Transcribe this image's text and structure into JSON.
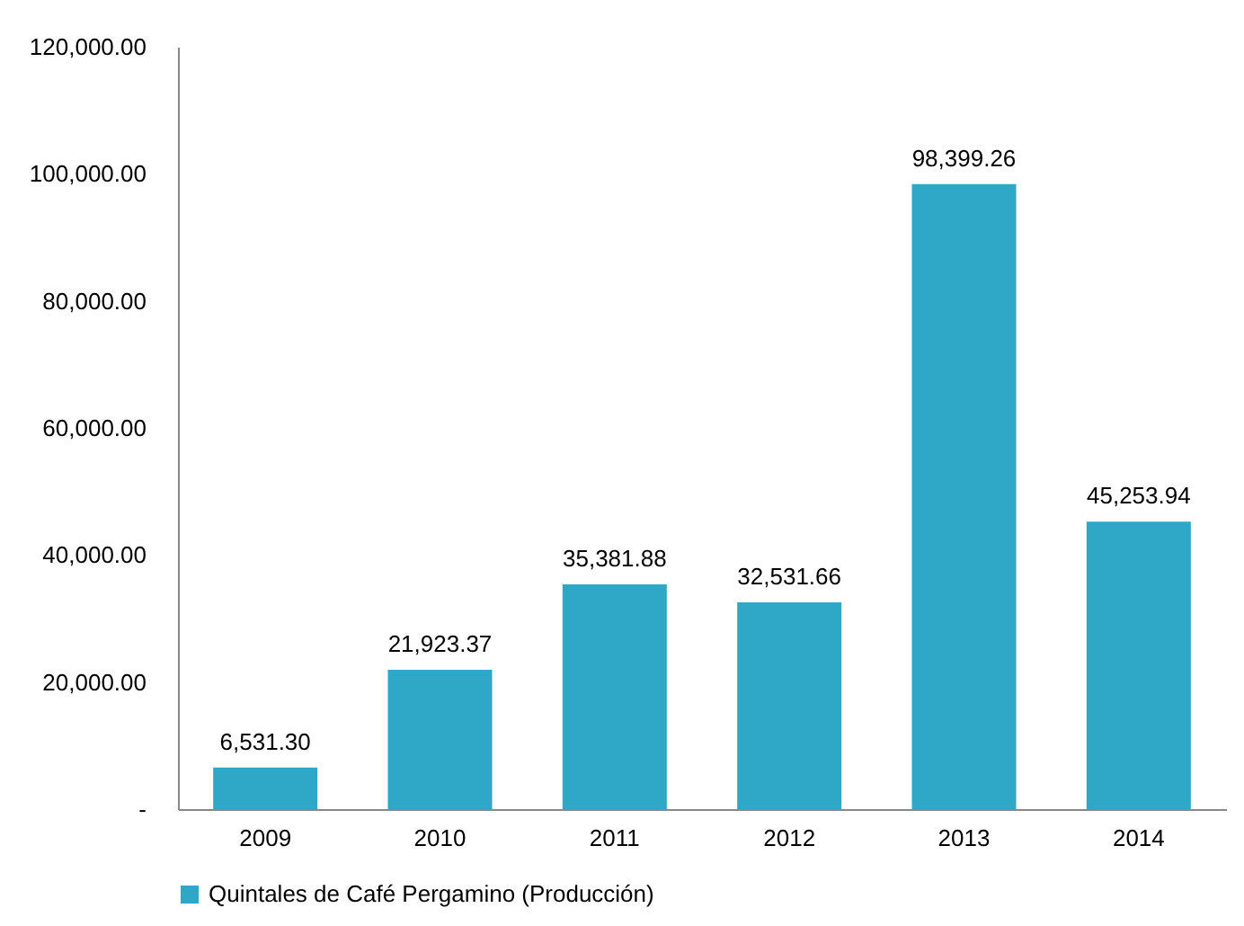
{
  "chart_data": {
    "type": "bar",
    "categories": [
      "2009",
      "2010",
      "2011",
      "2012",
      "2013",
      "2014"
    ],
    "series": [
      {
        "name": "Quintales de Café Pergamino (Producción)",
        "color": "#2fa8c8",
        "values": [
          6531.3,
          21923.37,
          35381.88,
          32531.66,
          98399.26,
          45253.94
        ],
        "value_labels": [
          "6,531.30",
          "21,923.37",
          "35,381.88",
          "32,531.66",
          "98,399.26",
          "45,253.94"
        ]
      }
    ],
    "ylim": [
      0,
      120000
    ],
    "yticks": [
      {
        "value": 0,
        "label": "-"
      },
      {
        "value": 20000,
        "label": "20,000.00"
      },
      {
        "value": 40000,
        "label": "40,000.00"
      },
      {
        "value": 60000,
        "label": "60,000.00"
      },
      {
        "value": 80000,
        "label": "80,000.00"
      },
      {
        "value": 100000,
        "label": "100,000.00"
      },
      {
        "value": 120000,
        "label": "120,000.00"
      }
    ],
    "grid": false,
    "legend": "bottom"
  }
}
